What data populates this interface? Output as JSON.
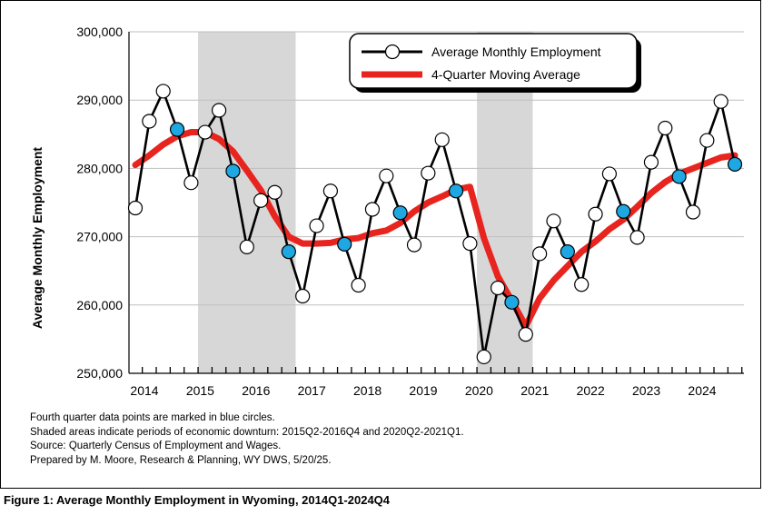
{
  "chart_data": {
    "type": "line",
    "ylabel": "Average Monthly Employment",
    "ylim": [
      250000,
      300000
    ],
    "y_ticks": [
      250000,
      260000,
      270000,
      280000,
      290000,
      300000
    ],
    "y_tick_labels": [
      "250,000",
      "260,000",
      "270,000",
      "280,000",
      "290,000",
      "300,000"
    ],
    "x_tick_labels": [
      "2014",
      "2015",
      "2016",
      "2017",
      "2018",
      "2019",
      "2020",
      "2021",
      "2022",
      "2023",
      "2024"
    ],
    "grid": true,
    "legend_position": "top-right",
    "x": [
      "2014Q1",
      "2014Q2",
      "2014Q3",
      "2014Q4",
      "2015Q1",
      "2015Q2",
      "2015Q3",
      "2015Q4",
      "2016Q1",
      "2016Q2",
      "2016Q3",
      "2016Q4",
      "2017Q1",
      "2017Q2",
      "2017Q3",
      "2017Q4",
      "2018Q1",
      "2018Q2",
      "2018Q3",
      "2018Q4",
      "2019Q1",
      "2019Q2",
      "2019Q3",
      "2019Q4",
      "2020Q1",
      "2020Q2",
      "2020Q3",
      "2020Q4",
      "2021Q1",
      "2021Q2",
      "2021Q3",
      "2021Q4",
      "2022Q1",
      "2022Q2",
      "2022Q3",
      "2022Q4",
      "2023Q1",
      "2023Q2",
      "2023Q3",
      "2023Q4",
      "2024Q1",
      "2024Q2",
      "2024Q3",
      "2024Q4"
    ],
    "shaded_regions": [
      [
        "2015Q2",
        "2016Q4"
      ],
      [
        "2020Q2",
        "2021Q1"
      ]
    ],
    "series": [
      {
        "name": "Average Monthly Employment",
        "color": "#000000",
        "marker_fill": "#ffffff",
        "q4_marker_fill": "#1ea7e1",
        "values": [
          274200,
          286900,
          291300,
          285700,
          277900,
          285300,
          288500,
          279600,
          268500,
          275300,
          276500,
          267800,
          261300,
          271600,
          276700,
          268900,
          262900,
          274000,
          278900,
          273500,
          268800,
          279300,
          284200,
          276700,
          269000,
          252400,
          262500,
          260400,
          255700,
          267500,
          272300,
          267800,
          263000,
          273300,
          279200,
          273700,
          269900,
          280900,
          285900,
          278800,
          273600,
          284100,
          289800,
          280600
        ]
      },
      {
        "name": "4-Quarter Moving Average",
        "color": "#e8241f",
        "values": [
          280500,
          281900,
          283500,
          284700,
          285300,
          285300,
          284300,
          282500,
          279700,
          276800,
          273000,
          270000,
          269000,
          269000,
          269100,
          269600,
          269800,
          270500,
          270900,
          272000,
          273700,
          275000,
          275900,
          276900,
          277300,
          269800,
          264200,
          260600,
          256900,
          261000,
          263600,
          265700,
          267800,
          269300,
          271100,
          272500,
          274400,
          276400,
          278000,
          279200,
          280000,
          280800,
          281600,
          281900
        ]
      }
    ]
  },
  "notes": [
    "Fourth quarter data points are marked in blue circles.",
    "Shaded areas indicate periods of economic downturn: 2015Q2-2016Q4 and 2020Q2-2021Q1.",
    "Source: Quarterly Census of Employment and Wages.",
    "Prepared by M. Moore, Research & Planning, WY DWS, 5/20/25."
  ],
  "caption": "Figure 1: Average Monthly Employment in Wyoming, 2014Q1-2024Q4",
  "colors": {
    "shade": "#d7d7d7",
    "grid": "#bfbfbf",
    "q4_marker": "#1ea7e1",
    "moving_average": "#e8241f"
  }
}
